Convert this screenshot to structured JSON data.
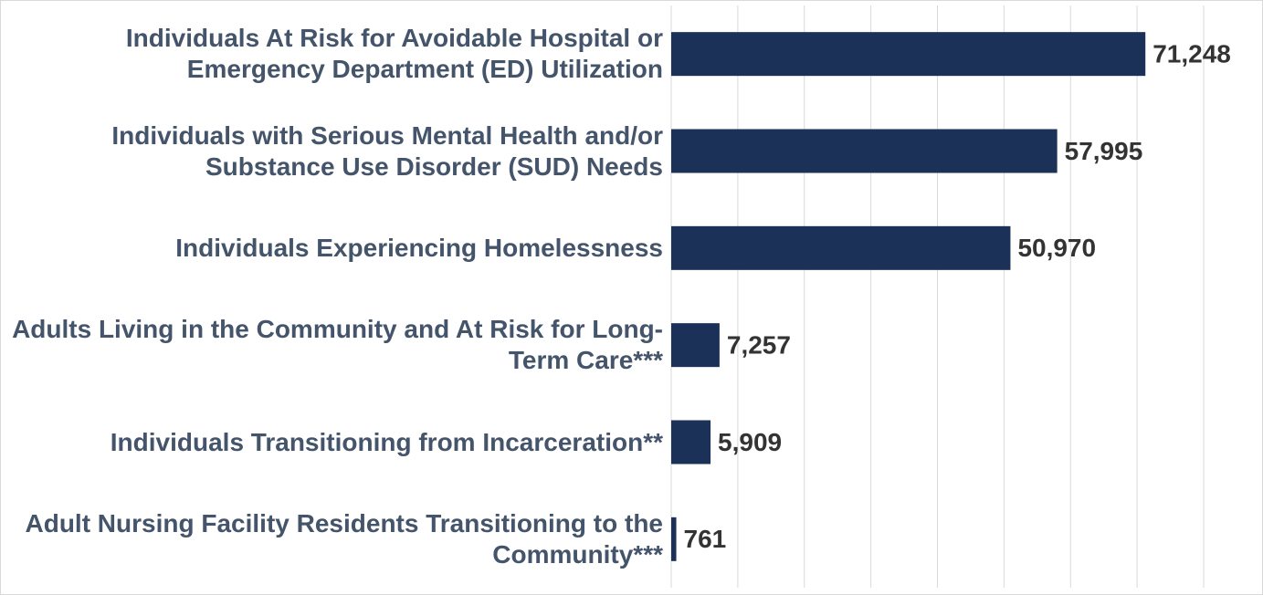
{
  "chart_data": {
    "type": "bar",
    "orientation": "horizontal",
    "categories": [
      "Individuals At Risk for Avoidable Hospital or Emergency Department (ED) Utilization",
      "Individuals with Serious Mental Health and/or Substance Use Disorder (SUD) Needs",
      "Individuals Experiencing Homelessness",
      "Adults Living in the Community and At Risk for Long-Term Care***",
      "Individuals Transitioning from Incarceration**",
      "Adult Nursing Facility Residents Transitioning to the Community***"
    ],
    "values": [
      71248,
      57995,
      50970,
      7257,
      5909,
      761
    ],
    "value_labels": [
      "71,248",
      "57,995",
      "50,970",
      "7,257",
      "5,909",
      "761"
    ],
    "color": "#1b3157",
    "xlim": [
      0,
      80000
    ],
    "xticks": [
      0,
      10000,
      20000,
      30000,
      40000,
      50000,
      60000,
      70000,
      80000
    ],
    "grid": true
  }
}
